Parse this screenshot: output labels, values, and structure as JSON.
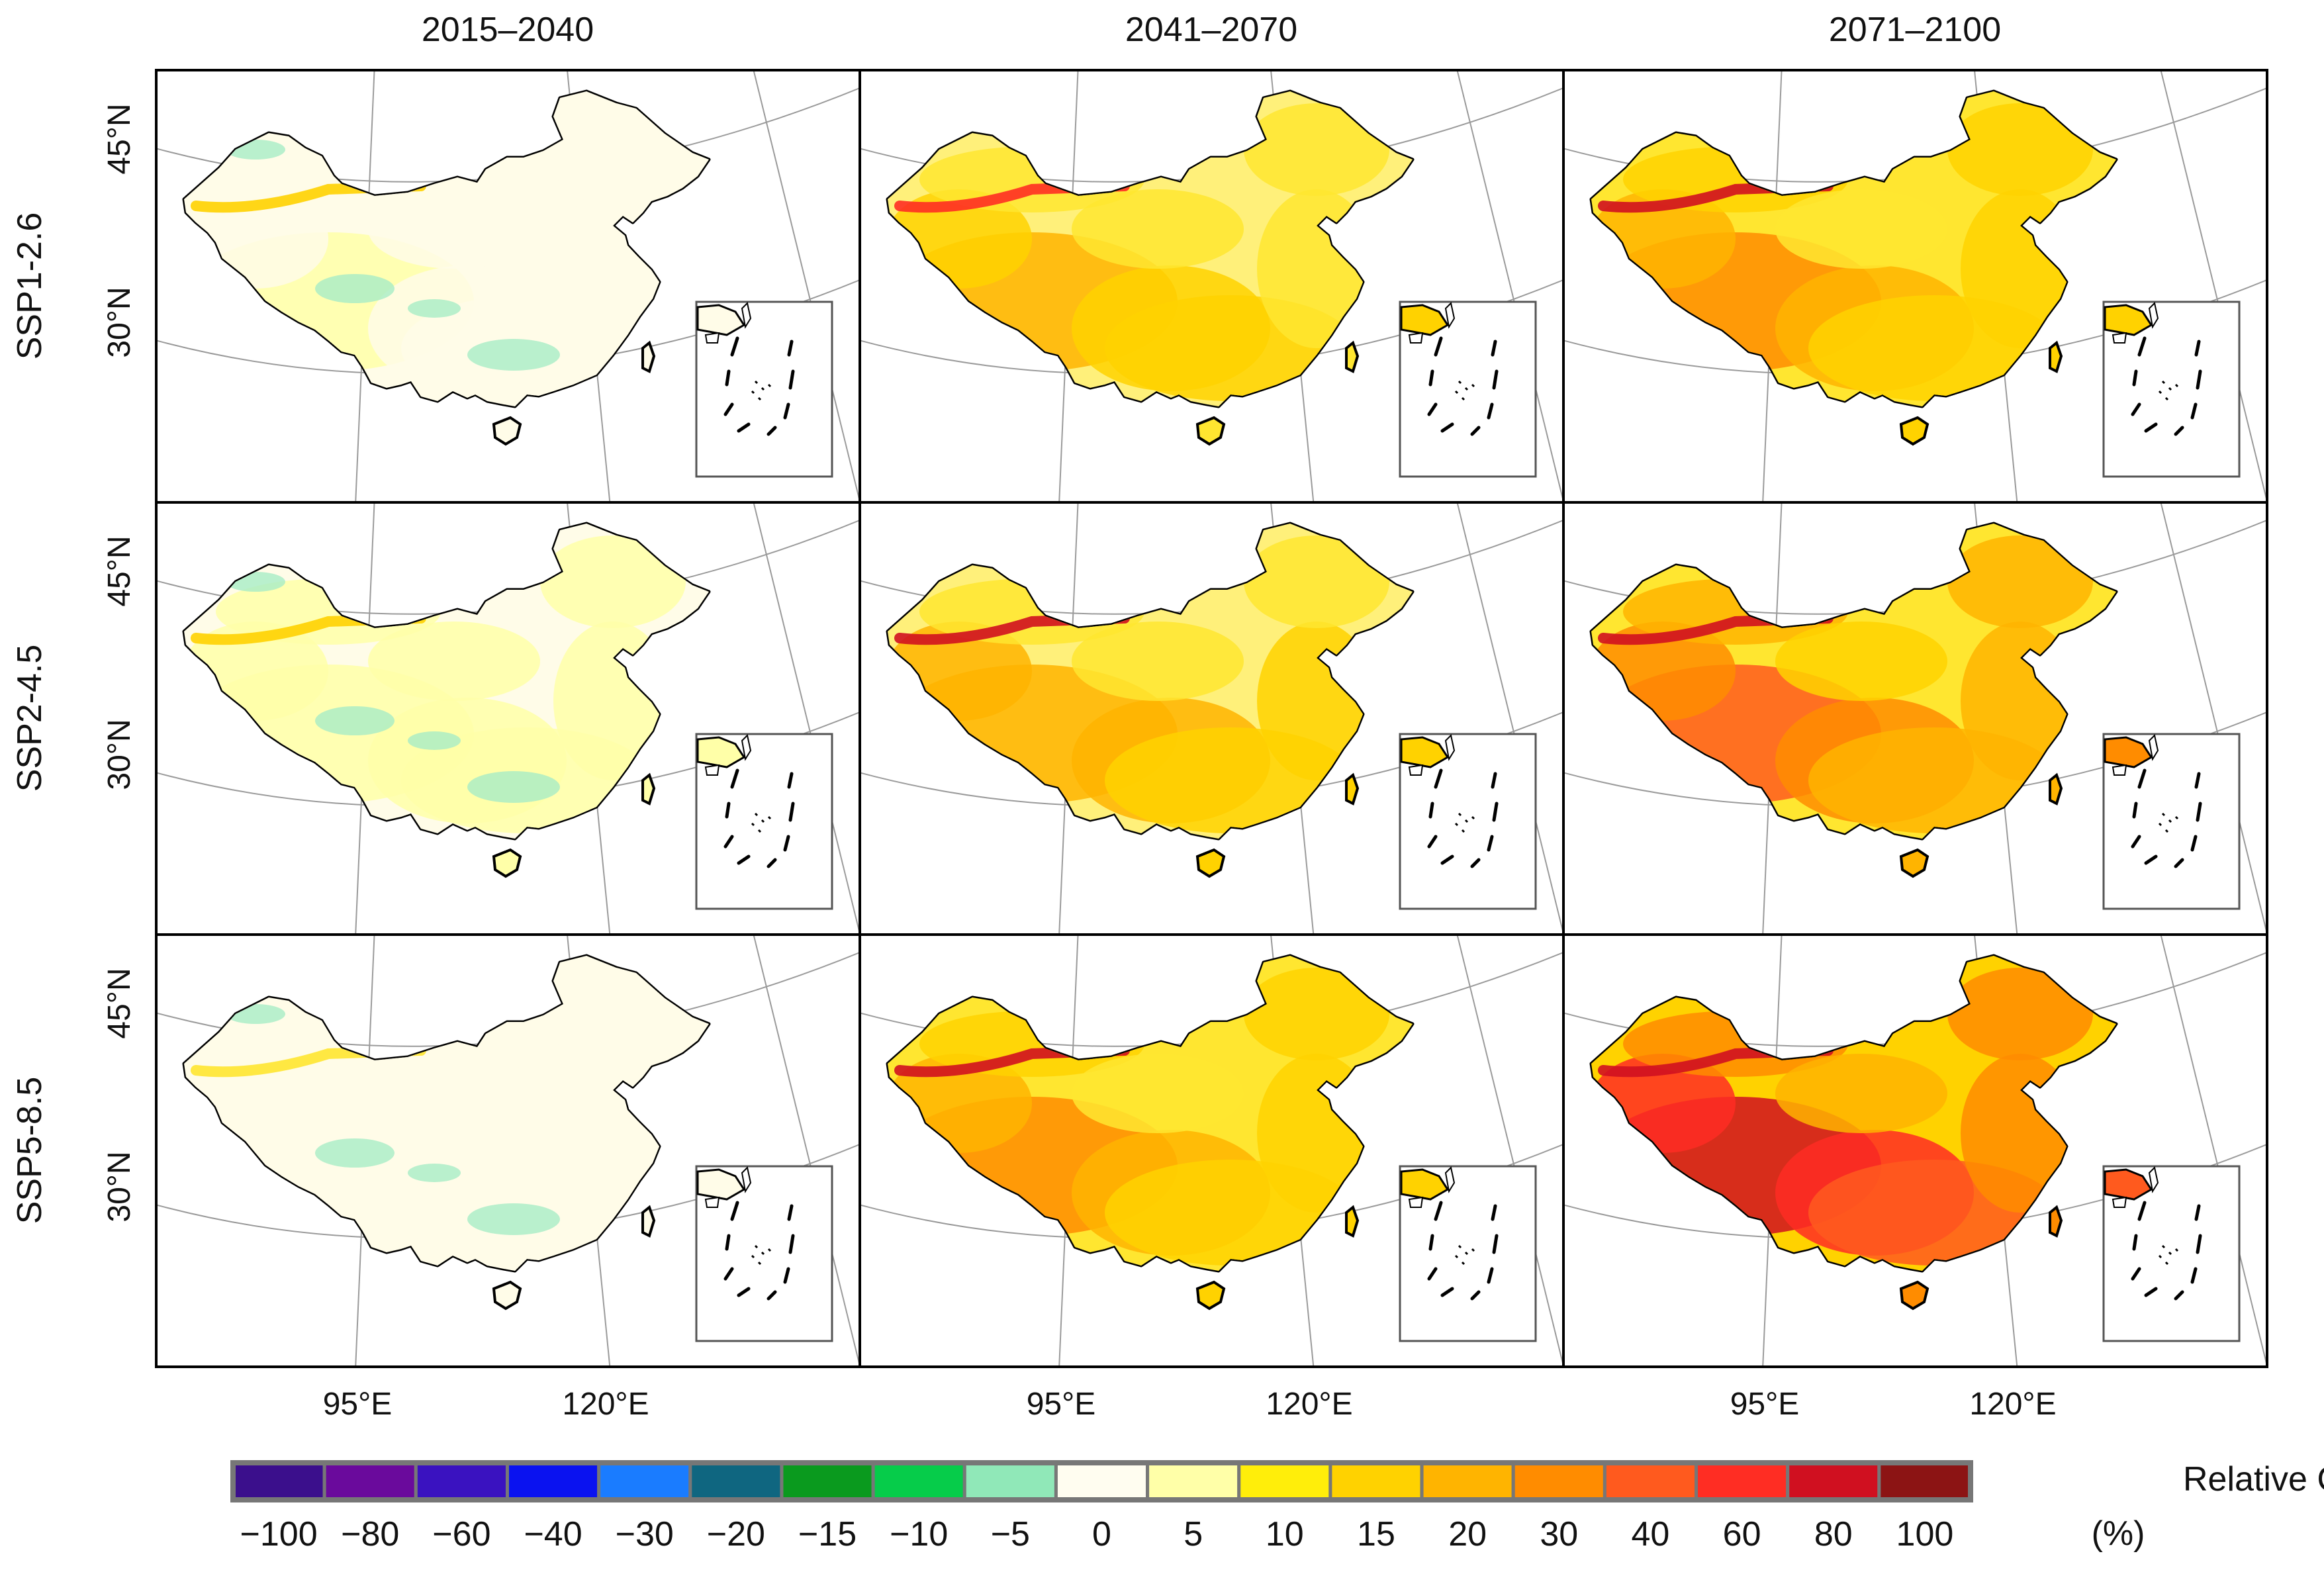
{
  "figure": {
    "column_titles": [
      "2015–2040",
      "2041–2070",
      "2071–2100"
    ],
    "row_labels": [
      "SSP1-2.6",
      "SSP2-4.5",
      "SSP5-8.5"
    ],
    "lat_labels": [
      "45°N",
      "30°N"
    ],
    "lon_labels": [
      "95°E",
      "120°E"
    ],
    "panels": [
      {
        "scenario": "SSP1-2.6",
        "period": "2015–2040",
        "intensity": 0.05
      },
      {
        "scenario": "SSP1-2.6",
        "period": "2041–2070",
        "intensity": 0.45
      },
      {
        "scenario": "SSP1-2.6",
        "period": "2071–2100",
        "intensity": 0.55
      },
      {
        "scenario": "SSP2-4.5",
        "period": "2015–2040",
        "intensity": 0.08
      },
      {
        "scenario": "SSP2-4.5",
        "period": "2041–2070",
        "intensity": 0.5
      },
      {
        "scenario": "SSP2-4.5",
        "period": "2071–2100",
        "intensity": 0.68
      },
      {
        "scenario": "SSP5-8.5",
        "period": "2015–2040",
        "intensity": 0.02
      },
      {
        "scenario": "SSP5-8.5",
        "period": "2041–2070",
        "intensity": 0.55
      },
      {
        "scenario": "SSP5-8.5",
        "period": "2071–2100",
        "intensity": 0.85
      }
    ]
  },
  "legend": {
    "title_line1": "Relative Change",
    "title_line2": "(%)",
    "colors": [
      "#3b0f8c",
      "#6a0a9c",
      "#3a12c0",
      "#0a12f0",
      "#1a7cff",
      "#0f6680",
      "#0a9a1e",
      "#06cc4a",
      "#90e8b8",
      "#fffdf0",
      "#ffffa8",
      "#ffee0a",
      "#ffd200",
      "#ffb400",
      "#ff8c00",
      "#ff5a1e",
      "#ff2d23",
      "#d01020",
      "#8c1414"
    ],
    "tick_labels": [
      "−100",
      "−80",
      "−60",
      "−40",
      "−30",
      "−20",
      "−15",
      "−10",
      "−5",
      "0",
      "5",
      "10",
      "15",
      "20",
      "30",
      "40",
      "60",
      "80",
      "100"
    ]
  }
}
